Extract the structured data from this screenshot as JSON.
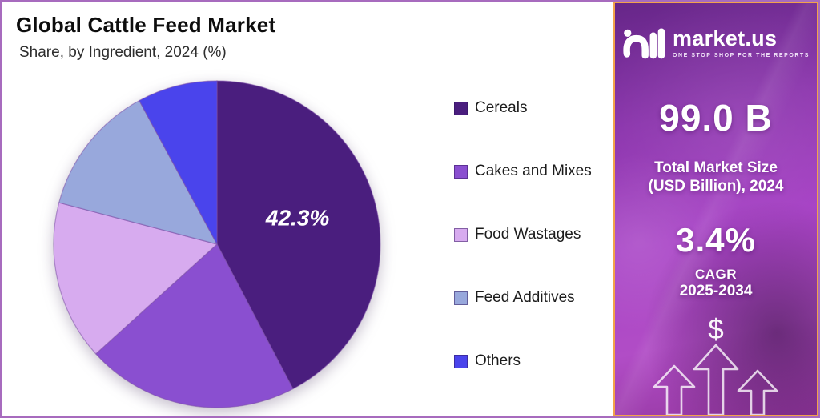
{
  "frame": {
    "outer_border_color": "#A76BBE",
    "chart_background": "#FFFFFF"
  },
  "header": {
    "title": "Global Cattle Feed Market",
    "subtitle": "Share, by Ingredient, 2024 (%)"
  },
  "chart_data": {
    "type": "pie",
    "title": "Global Cattle Feed Market",
    "subtitle": "Share, by Ingredient, 2024 (%)",
    "unit": "%",
    "start_angle_deg": 0,
    "direction": "clockwise",
    "legend_position": "right",
    "slices": [
      {
        "label": "Cereals",
        "value": 42.3,
        "color": "#4A1E7E",
        "value_label": "42.3%"
      },
      {
        "label": "Cakes and Mixes",
        "value": 21.0,
        "color": "#8A4FD0"
      },
      {
        "label": "Food Wastages",
        "value": 15.8,
        "color": "#D7ABEF"
      },
      {
        "label": "Feed Additives",
        "value": 13.0,
        "color": "#98A8DC"
      },
      {
        "label": "Others",
        "value": 7.9,
        "color": "#4A44EC"
      }
    ]
  },
  "panel": {
    "border_color": "#F2A24B",
    "background_colors": [
      "#662688",
      "#A843C6",
      "#B14DC6"
    ],
    "logo": {
      "brand": "market.us",
      "tagline": "ONE STOP SHOP FOR THE REPORTS"
    },
    "market_size": {
      "value": "99.0 B",
      "label_line1": "Total Market Size",
      "label_line2": "(USD Billion), 2024"
    },
    "cagr": {
      "value": "3.4%",
      "label_line1": "CAGR",
      "label_line2": "2025-2034"
    },
    "dollar_symbol": "$"
  }
}
